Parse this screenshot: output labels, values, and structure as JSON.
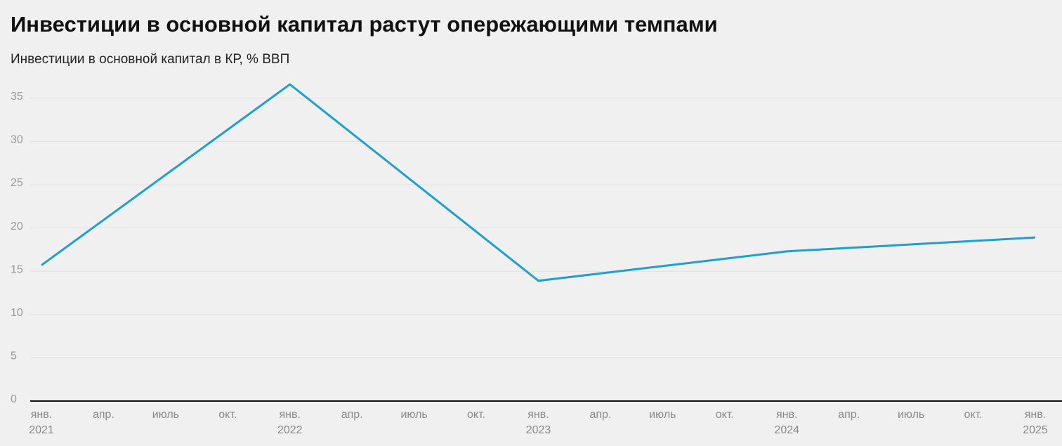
{
  "chart_data": {
    "type": "line",
    "title": "Инвестиции в основной капитал растут опережающими темпами",
    "subtitle": "Инвестиции в основной капитал в КР, % ВВП",
    "x": [
      "2021-01",
      "2022-01",
      "2023-01",
      "2024-01",
      "2025-01"
    ],
    "series": [
      {
        "name": "Инвестиции в основной капитал",
        "color": "#1f9fcf",
        "values": [
          15.7,
          36.6,
          13.9,
          17.3,
          18.9
        ]
      }
    ],
    "xlim": [
      "2021-01",
      "2025-01"
    ],
    "xticks": [
      {
        "value": "2021-01",
        "label": "янв.\n2021"
      },
      {
        "value": "2021-04",
        "label": "апр."
      },
      {
        "value": "2021-07",
        "label": "июль"
      },
      {
        "value": "2021-10",
        "label": "окт."
      },
      {
        "value": "2022-01",
        "label": "янв.\n2022"
      },
      {
        "value": "2022-04",
        "label": "апр."
      },
      {
        "value": "2022-07",
        "label": "июль"
      },
      {
        "value": "2022-10",
        "label": "окт."
      },
      {
        "value": "2023-01",
        "label": "янв.\n2023"
      },
      {
        "value": "2023-04",
        "label": "апр."
      },
      {
        "value": "2023-07",
        "label": "июль"
      },
      {
        "value": "2023-10",
        "label": "окт."
      },
      {
        "value": "2024-01",
        "label": "янв.\n2024"
      },
      {
        "value": "2024-04",
        "label": "апр."
      },
      {
        "value": "2024-07",
        "label": "июль"
      },
      {
        "value": "2024-10",
        "label": "окт."
      },
      {
        "value": "2025-01",
        "label": "янв.\n2025"
      }
    ],
    "ylim": [
      0,
      37.5
    ],
    "yticks": [
      0,
      5,
      10,
      15,
      20,
      25,
      30,
      35
    ],
    "grid": true
  }
}
